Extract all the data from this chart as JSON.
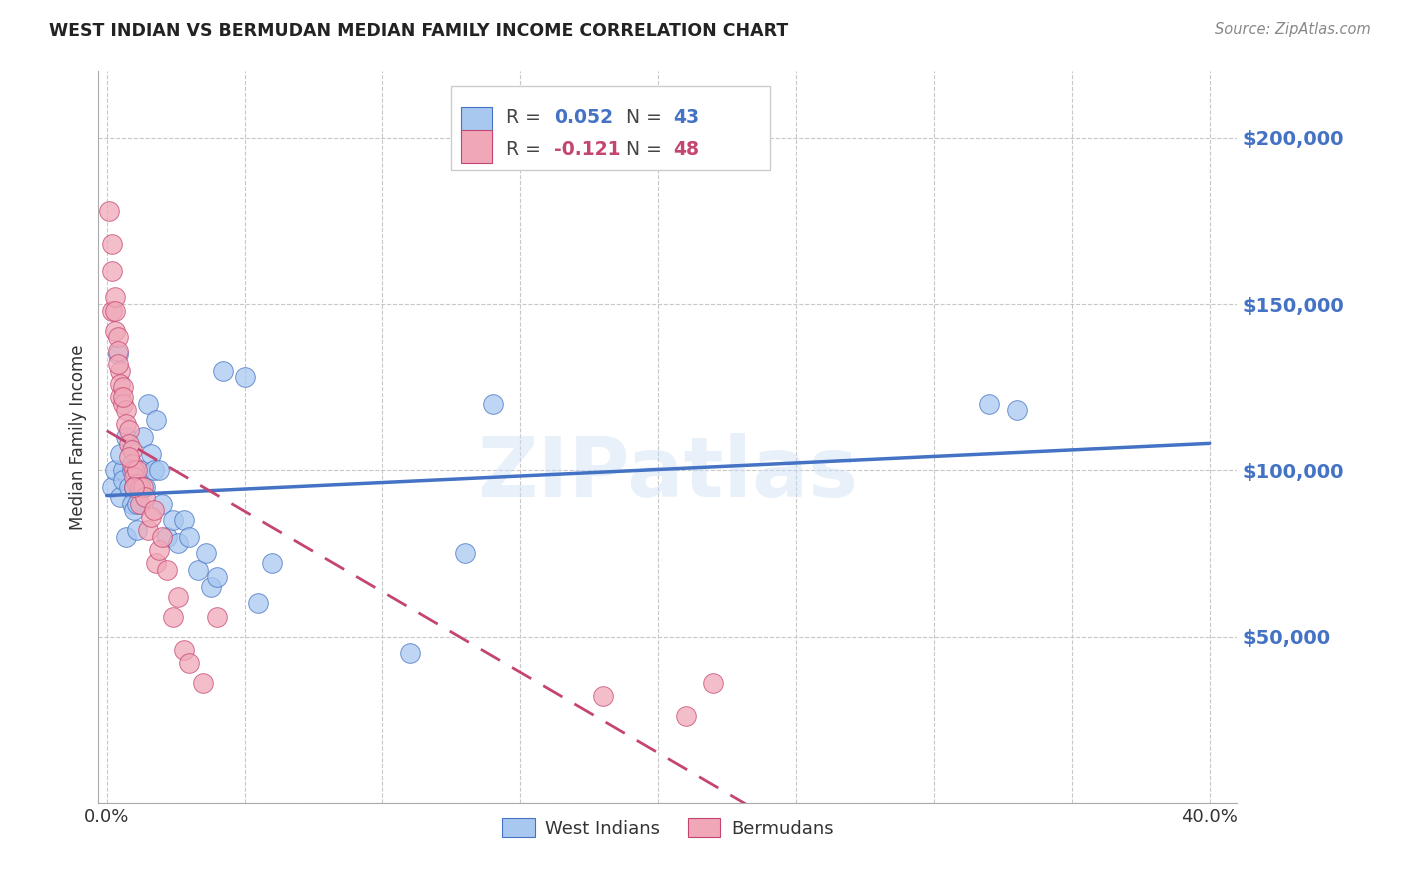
{
  "title": "WEST INDIAN VS BERMUDAN MEDIAN FAMILY INCOME CORRELATION CHART",
  "source": "Source: ZipAtlas.com",
  "ylabel_label": "Median Family Income",
  "xlim": [
    -0.003,
    0.41
  ],
  "ylim": [
    0,
    220000
  ],
  "y_ticks": [
    0,
    50000,
    100000,
    150000,
    200000
  ],
  "y_tick_labels": [
    "",
    "$50,000",
    "$100,000",
    "$150,000",
    "$200,000"
  ],
  "x_ticks": [
    0.0,
    0.05,
    0.1,
    0.15,
    0.2,
    0.25,
    0.3,
    0.35,
    0.4
  ],
  "x_tick_labels": [
    "0.0%",
    "",
    "",
    "",
    "",
    "",
    "",
    "",
    "40.0%"
  ],
  "y_tick_color": "#4472c4",
  "grid_color": "#c8c8c8",
  "background_color": "#ffffff",
  "watermark": "ZIPatlas",
  "legend_R1": "R = 0.052",
  "legend_N1": "N = 43",
  "legend_R2": "R = -0.121",
  "legend_N2": "N = 48",
  "blue_fill": "#a8c8f0",
  "blue_edge": "#4472c4",
  "pink_fill": "#f0a8b8",
  "pink_edge": "#c44472",
  "blue_line_color": "#4472c4",
  "pink_line_color": "#c44472",
  "west_indians_label": "West Indians",
  "bermudans_label": "Bermudans",
  "west_indians_x": [
    0.002,
    0.003,
    0.004,
    0.005,
    0.006,
    0.006,
    0.007,
    0.008,
    0.009,
    0.01,
    0.01,
    0.011,
    0.012,
    0.013,
    0.014,
    0.015,
    0.016,
    0.017,
    0.018,
    0.019,
    0.02,
    0.022,
    0.024,
    0.026,
    0.028,
    0.03,
    0.033,
    0.036,
    0.038,
    0.04,
    0.042,
    0.05,
    0.055,
    0.06,
    0.11,
    0.13,
    0.14,
    0.32,
    0.33,
    0.005,
    0.007,
    0.009,
    0.011
  ],
  "west_indians_y": [
    95000,
    100000,
    135000,
    92000,
    100000,
    97000,
    110000,
    95000,
    90000,
    95000,
    88000,
    90000,
    100000,
    110000,
    95000,
    120000,
    105000,
    100000,
    115000,
    100000,
    90000,
    80000,
    85000,
    78000,
    85000,
    80000,
    70000,
    75000,
    65000,
    68000,
    130000,
    128000,
    60000,
    72000,
    45000,
    75000,
    120000,
    120000,
    118000,
    105000,
    80000,
    100000,
    82000
  ],
  "bermudans_x": [
    0.001,
    0.002,
    0.002,
    0.003,
    0.003,
    0.004,
    0.004,
    0.005,
    0.005,
    0.005,
    0.006,
    0.006,
    0.007,
    0.007,
    0.008,
    0.008,
    0.009,
    0.009,
    0.01,
    0.01,
    0.011,
    0.011,
    0.012,
    0.012,
    0.013,
    0.014,
    0.015,
    0.016,
    0.017,
    0.018,
    0.019,
    0.02,
    0.022,
    0.024,
    0.026,
    0.028,
    0.03,
    0.035,
    0.04,
    0.18,
    0.21,
    0.22,
    0.003,
    0.004,
    0.006,
    0.008,
    0.01,
    0.002
  ],
  "bermudans_y": [
    178000,
    160000,
    148000,
    152000,
    142000,
    140000,
    136000,
    130000,
    126000,
    122000,
    125000,
    120000,
    118000,
    114000,
    112000,
    108000,
    106000,
    102000,
    100000,
    98000,
    96000,
    100000,
    95000,
    90000,
    95000,
    92000,
    82000,
    86000,
    88000,
    72000,
    76000,
    80000,
    70000,
    56000,
    62000,
    46000,
    42000,
    36000,
    56000,
    32000,
    26000,
    36000,
    148000,
    132000,
    122000,
    104000,
    95000,
    168000
  ]
}
